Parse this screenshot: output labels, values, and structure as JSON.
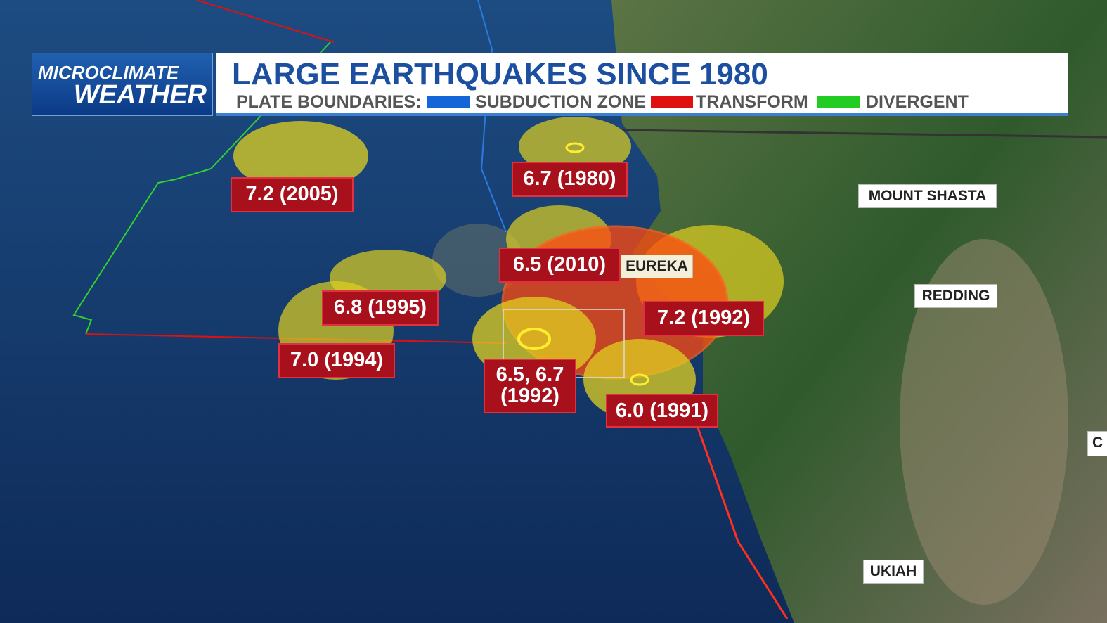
{
  "brand": {
    "line1": "MICROCLIMATE",
    "line2": "WEATHER"
  },
  "header": {
    "title": "LARGE EARTHQUAKES SINCE 1980",
    "legend_label": "PLATE BOUNDARIES:",
    "legend": [
      {
        "label": "SUBDUCTION ZONE",
        "color": "#1466d8"
      },
      {
        "label": "TRANSFORM",
        "color": "#e01010"
      },
      {
        "label": "DIVERGENT",
        "color": "#22cc22"
      }
    ]
  },
  "earthquakes": [
    {
      "label": "7.2 (2005)"
    },
    {
      "label": "6.7 (1980)"
    },
    {
      "label": "6.5 (2010)"
    },
    {
      "label": "6.8 (1995)"
    },
    {
      "label": "7.2 (1992)"
    },
    {
      "label": "7.0 (1994)"
    },
    {
      "label": [
        "6.5, 6.7",
        "(1992)"
      ]
    },
    {
      "label": "6.0 (1991)"
    }
  ],
  "cities": [
    "EUREKA",
    "MOUNT SHASTA",
    "REDDING",
    "UKIAH",
    "C"
  ]
}
